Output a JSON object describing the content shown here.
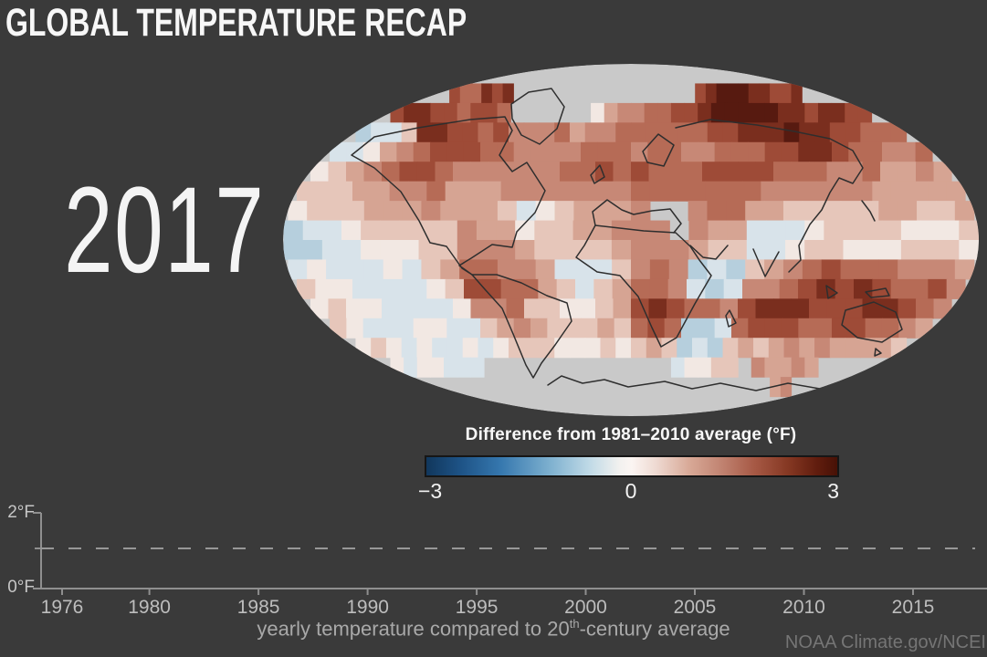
{
  "page": {
    "background": "#3a3a3a",
    "title": "GLOBAL TEMPERATURE RECAP",
    "year": "2017",
    "attribution": "NOAA Climate.gov/NCEI"
  },
  "map": {
    "no_data_color": "#c9c9c9",
    "coast_color": "#2e2e2e",
    "palette": {
      "x": "#c9c9c9",
      "0": "#571a10",
      "1": "#7a2e1e",
      "2": "#9e4b37",
      "3": "#b66b56",
      "4": "#c78876",
      "5": "#d6a493",
      "6": "#e6c6ba",
      "7": "#f2e8e3",
      "8": "#d8e3ea",
      "9": "#b6cfdd",
      "a": "#8db5cc"
    },
    "grid_rows": [
      "xxxxxxxxxxxxxxxxxxxxxxxxxxxxxxxxxxxx",
      "x233121xxxxxxxxxxxxxxxxx2100011221xx",
      "211223223xxxxxx754433221000001121122",
      "988611223244435443333332211101122333",
      "887543222334444333433443332211233443",
      "765432234444443323233322223334435545",
      "666554435554444444333333344444455555",
      "7666555455568765554xx433556666655665",
      "98876666645576655444x455888766667776",
      "998877766444566665444566887667776667",
      "878887865334458886434989654323334445",
      "677888876223356865334898443212123324",
      "767788887443667765212334211122211234",
      "678887788654566656323998322233223345",
      "767878878766677767656989656545455556",
      "7877888xxxxxxxxxxxxxx87766x45545xxxx",
      "xxxxxxxxxxxxxxxxxxxxxxxxxxxxxxx54xxx",
      "xxxxxxxxxxxxxxxxxxxxxxxxxxxxxxxxxxxx"
    ]
  },
  "colorbar": {
    "title": "Difference from 1981–2010 average (°F)",
    "labels": {
      "min": "−3",
      "mid": "0",
      "max": "3"
    },
    "gradient": [
      "#11375c 0%",
      "#1d5285 8%",
      "#3577ae 18%",
      "#7db0cf 30%",
      "#c2dbe7 40%",
      "#f2f1ef 47%",
      "#fbf5f2 50%",
      "#eed9d1 56%",
      "#d8a997 64%",
      "#c08270 72%",
      "#a65844 80%",
      "#853823 88%",
      "#611d0e 95%",
      "#471106 100%"
    ]
  },
  "timeline": {
    "y_axis": {
      "top": "2°F",
      "bottom": "0°F"
    },
    "years": [
      1976,
      1980,
      1985,
      1990,
      1995,
      2000,
      2005,
      2010,
      2015
    ],
    "caption_pre": "yearly temperature compared to 20",
    "caption_sup": "th",
    "caption_post": "-century average"
  },
  "chart_data": [
    {
      "type": "heatmap",
      "title": "Difference from 1981–2010 average (°F)",
      "units": "°F",
      "year": "2017",
      "value_range": [
        -3,
        3
      ],
      "colorbar_ticks": [
        "−3",
        "0",
        "3"
      ],
      "projection": "global oval (Mollweide-style) anomaly grid",
      "grid_encoding": "map.grid_rows: 18 latitude rows x 36 longitude cells; char keys in map.palette; x = no data (gray)",
      "notable_features": "dark red Arctic/Siberia/NW North America, gray polar caps, cool blue patches in eastern Pacific, southern oceans and Indian Ocean"
    },
    {
      "type": "line",
      "caption": "yearly temperature compared to 20th-century average",
      "x_ticks": [
        1976,
        1980,
        1985,
        1990,
        1995,
        2000,
        2005,
        2010,
        2015
      ],
      "x_range": [
        1975,
        2017.5
      ],
      "ylim": [
        0,
        2
      ],
      "y_ticks": [
        "0°F",
        "2°F"
      ],
      "reference_line_y": 1,
      "reference_line_style": "dashed",
      "series": []
    }
  ]
}
